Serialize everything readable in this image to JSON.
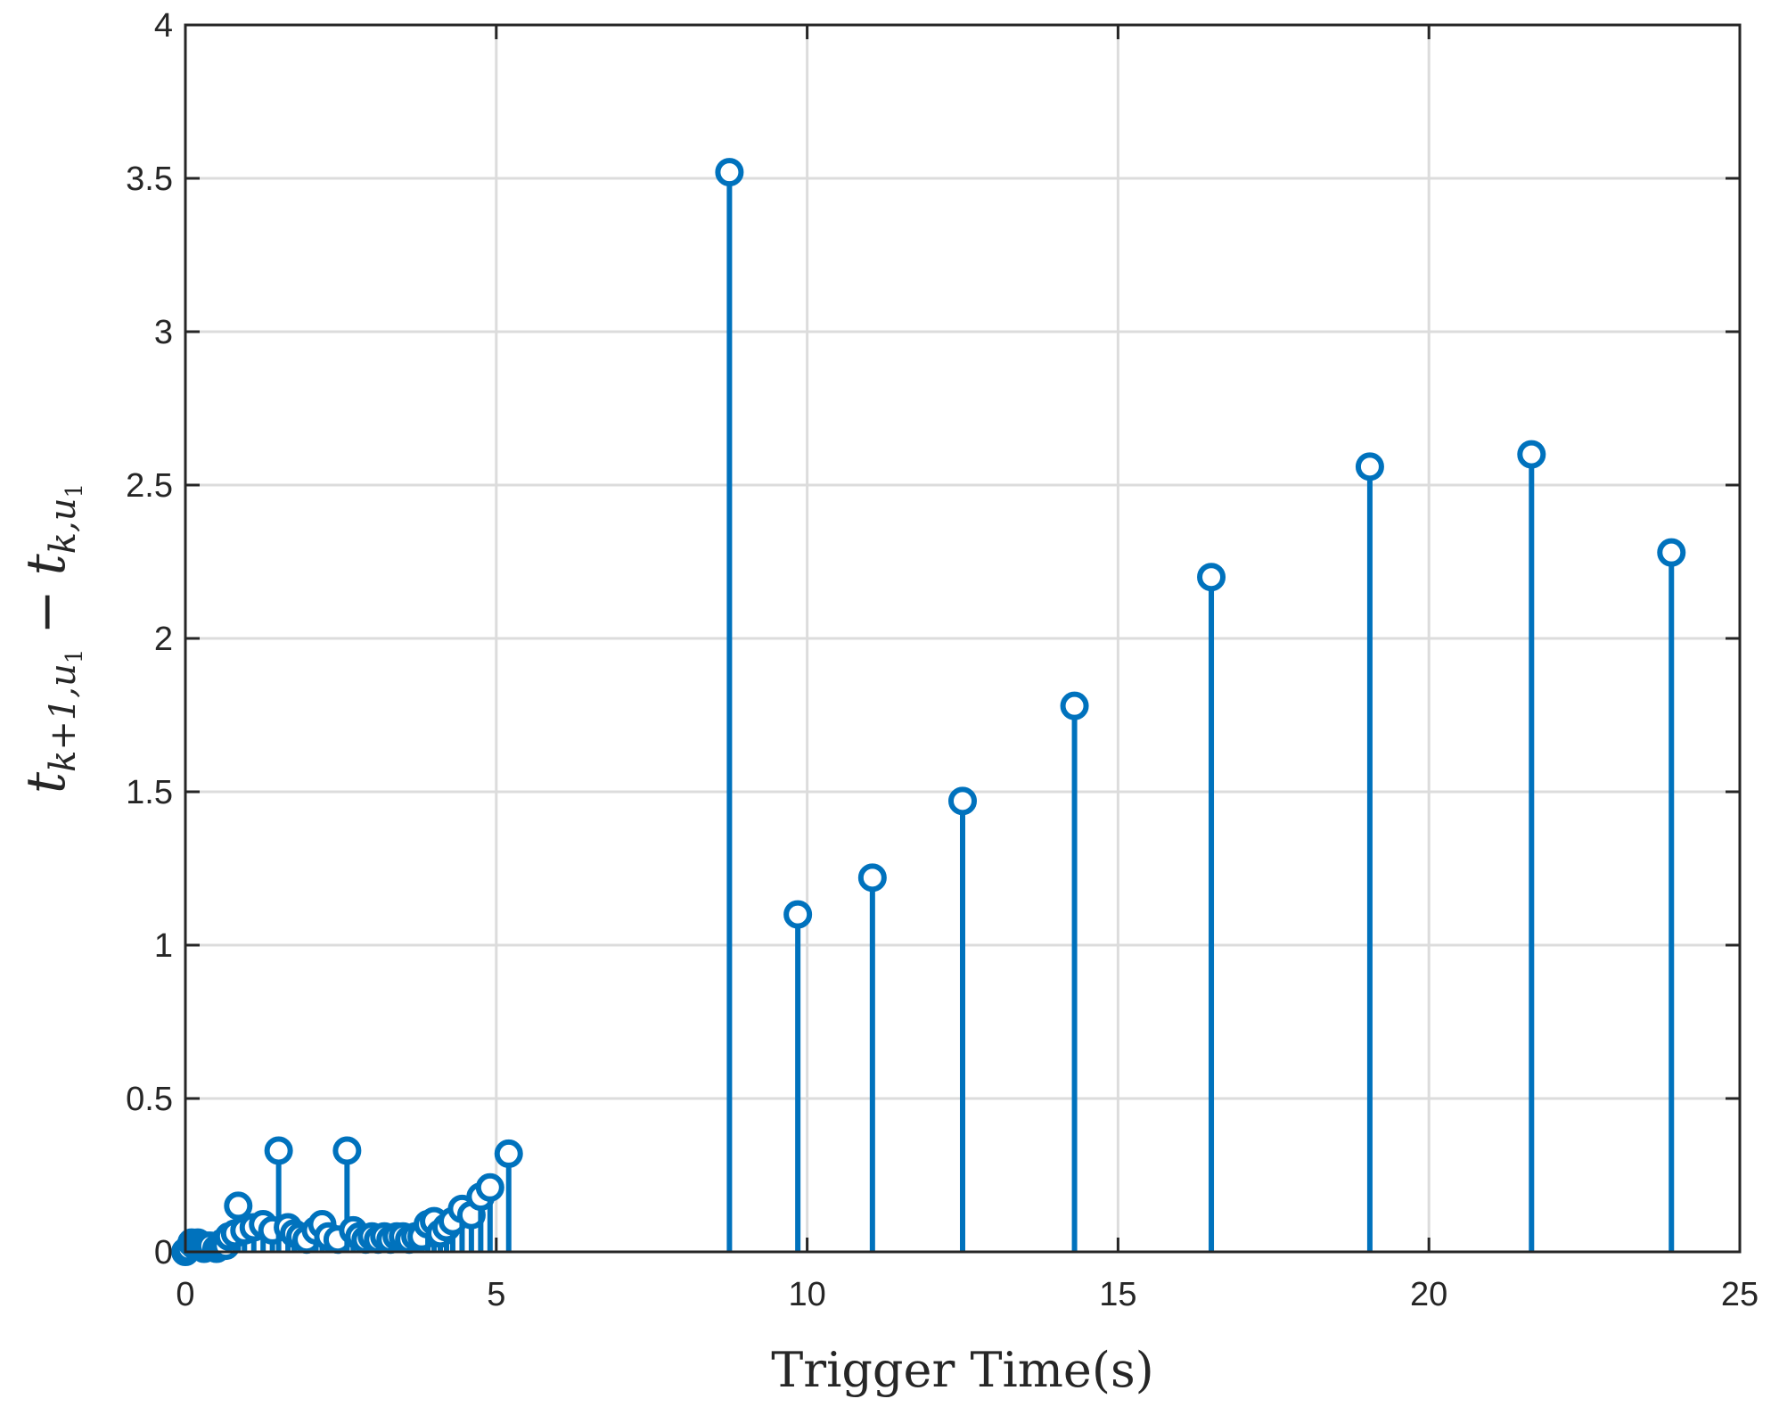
{
  "chart_data": {
    "type": "stem",
    "xlabel": "Trigger Time(s)",
    "ylabel": {
      "t1": "t",
      "t1_sub": "k+1,",
      "t1_sub_u": "u",
      "t1_sub_u_sub": "1",
      "minus": "−",
      "t2": "t",
      "t2_sub": "k,",
      "t2_sub_u": "u",
      "t2_sub_u_sub": "1"
    },
    "xlim": [
      0,
      25
    ],
    "ylim": [
      0,
      4
    ],
    "xticks": [
      "0",
      "5",
      "10",
      "15",
      "20",
      "25"
    ],
    "yticks": [
      "0",
      "0.5",
      "1",
      "1.5",
      "2",
      "2.5",
      "3",
      "3.5",
      "4"
    ],
    "grid": true,
    "color": "#0072BD",
    "series": [
      {
        "x": [
          0.0,
          0.05,
          0.1,
          0.15,
          0.2,
          0.25,
          0.3,
          0.35,
          0.4,
          0.5,
          0.55,
          0.6,
          0.65,
          0.7,
          0.8,
          0.85,
          0.95,
          1.1,
          1.25,
          1.4,
          1.5,
          1.65,
          1.75,
          1.85,
          1.95,
          2.1,
          2.2,
          2.3,
          2.45,
          2.6,
          2.7,
          2.8,
          2.9,
          3.0,
          3.1,
          3.2,
          3.3,
          3.4,
          3.5,
          3.6,
          3.7,
          3.8,
          3.9,
          4.0,
          4.1,
          4.2,
          4.3,
          4.45,
          4.6,
          4.75,
          4.9,
          5.2,
          8.75,
          9.85,
          11.05,
          12.5,
          14.3,
          16.5,
          19.05,
          21.65,
          23.9
        ],
        "y": [
          0.0,
          0.01,
          0.03,
          0.02,
          0.03,
          0.02,
          0.01,
          0.02,
          0.02,
          0.01,
          0.02,
          0.03,
          0.02,
          0.05,
          0.06,
          0.15,
          0.07,
          0.08,
          0.09,
          0.07,
          0.33,
          0.08,
          0.06,
          0.05,
          0.04,
          0.07,
          0.09,
          0.05,
          0.04,
          0.33,
          0.07,
          0.05,
          0.04,
          0.05,
          0.04,
          0.05,
          0.04,
          0.05,
          0.05,
          0.04,
          0.05,
          0.05,
          0.09,
          0.1,
          0.06,
          0.08,
          0.1,
          0.14,
          0.12,
          0.18,
          0.21,
          0.32,
          3.52,
          1.1,
          1.22,
          1.47,
          1.78,
          2.2,
          2.56,
          2.6,
          2.28
        ]
      }
    ]
  }
}
